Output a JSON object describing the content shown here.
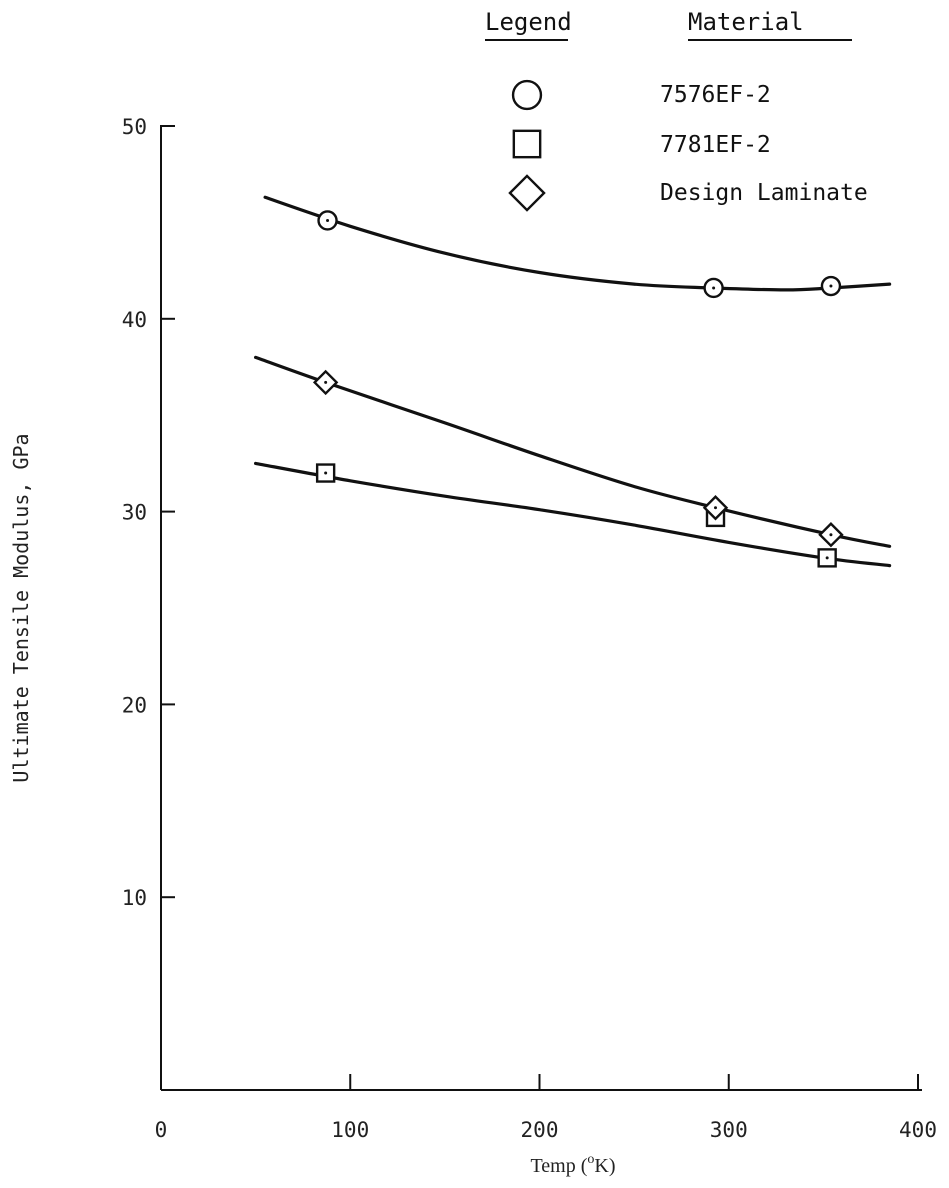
{
  "chart_data": {
    "type": "scatter",
    "xlabel": "Temp (°K)",
    "xlabel_parts": {
      "prefix": "Temp (",
      "sup": "o",
      "suffix": "K)"
    },
    "ylabel": "Ultimate Tensile Modulus, GPa",
    "xlim": [
      0,
      400
    ],
    "ylim": [
      0,
      50
    ],
    "x_ticks": [
      0,
      100,
      200,
      300,
      400
    ],
    "y_ticks": [
      10,
      20,
      30,
      40,
      50
    ],
    "grid": false,
    "legend": {
      "placement": "top-right",
      "symbol_header": "Legend",
      "label_header": "Material"
    },
    "series": [
      {
        "name": "7576EF-2",
        "marker": "circle",
        "points": [
          [
            88,
            45.1
          ],
          [
            292,
            41.6
          ],
          [
            354,
            41.7
          ]
        ],
        "fit_curve": [
          [
            55,
            46.3
          ],
          [
            100,
            44.8
          ],
          [
            150,
            43.4
          ],
          [
            200,
            42.4
          ],
          [
            250,
            41.8
          ],
          [
            292,
            41.6
          ],
          [
            330,
            41.5
          ],
          [
            354,
            41.6
          ],
          [
            385,
            41.8
          ]
        ]
      },
      {
        "name": "7781EF-2",
        "marker": "square",
        "points": [
          [
            87,
            32.0
          ],
          [
            293,
            29.7
          ],
          [
            352,
            27.6
          ]
        ],
        "fit_curve": [
          [
            50,
            32.5
          ],
          [
            100,
            31.6
          ],
          [
            150,
            30.8
          ],
          [
            200,
            30.1
          ],
          [
            250,
            29.3
          ],
          [
            300,
            28.4
          ],
          [
            350,
            27.6
          ],
          [
            385,
            27.2
          ]
        ]
      },
      {
        "name": "Design Laminate",
        "marker": "diamond",
        "points": [
          [
            87,
            36.7
          ],
          [
            293,
            30.2
          ],
          [
            354,
            28.8
          ]
        ],
        "fit_curve": [
          [
            50,
            38.0
          ],
          [
            87,
            36.7
          ],
          [
            150,
            34.6
          ],
          [
            200,
            32.9
          ],
          [
            250,
            31.3
          ],
          [
            293,
            30.2
          ],
          [
            354,
            28.8
          ],
          [
            385,
            28.2
          ]
        ]
      }
    ]
  }
}
